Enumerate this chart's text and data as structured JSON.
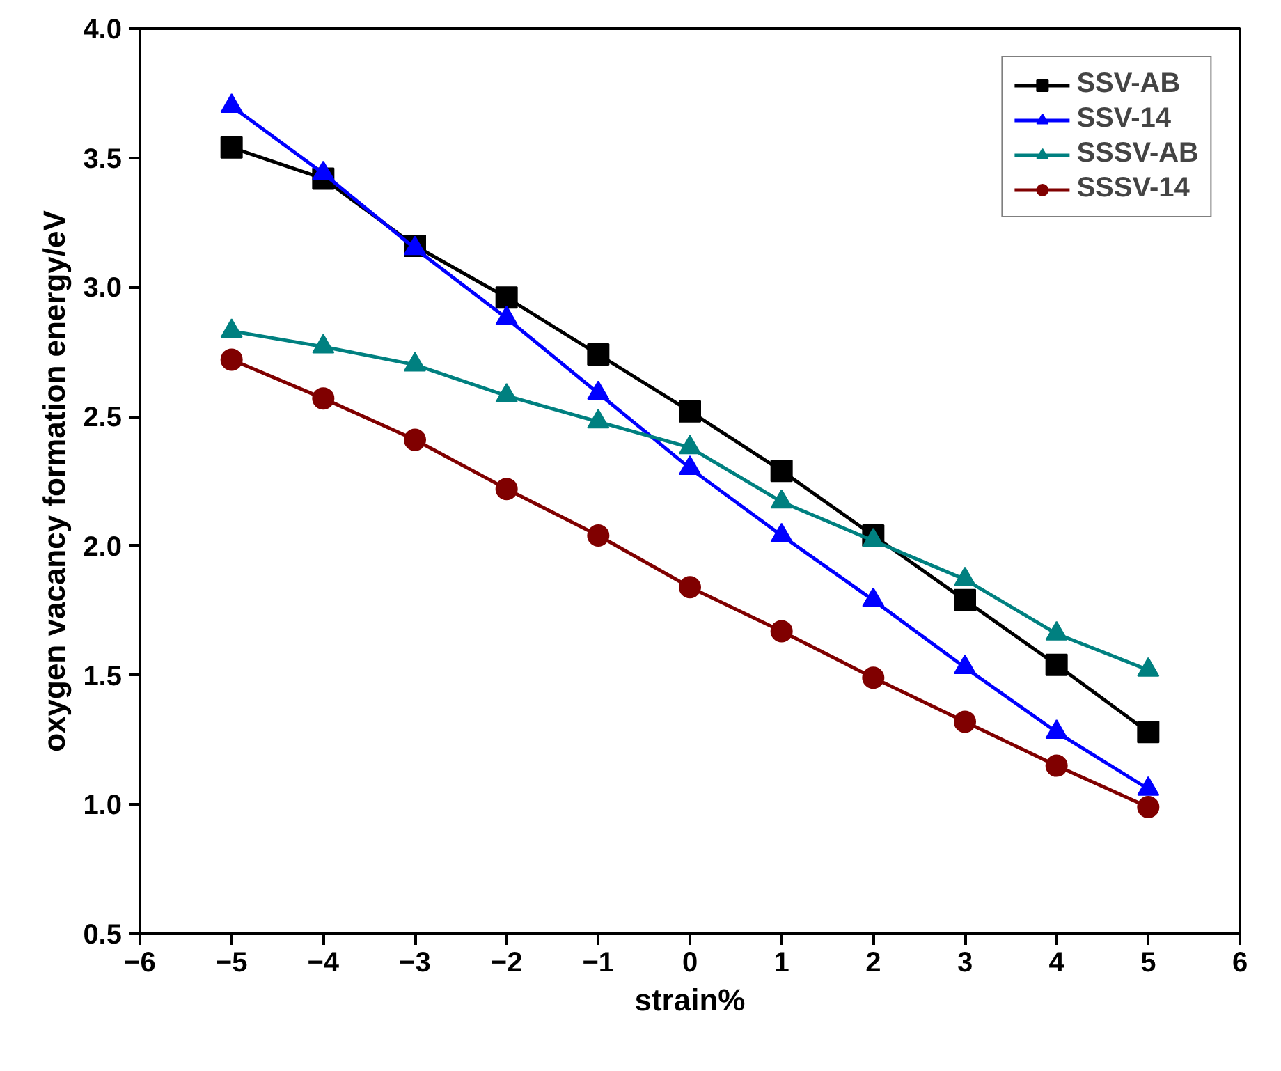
{
  "chart_data": {
    "type": "line",
    "xlabel": "strain%",
    "ylabel": "oxygen vacancy formation energy/eV",
    "x": [
      -5,
      -4,
      -3,
      -2,
      -1,
      0,
      1,
      2,
      3,
      4,
      5
    ],
    "series": [
      {
        "name": "SSV-AB",
        "color": "#000000",
        "marker": "square",
        "values": [
          3.54,
          3.42,
          3.16,
          2.96,
          2.74,
          2.52,
          2.29,
          2.04,
          1.79,
          1.54,
          1.28
        ]
      },
      {
        "name": "SSV-14",
        "color": "#0000ff",
        "marker": "triangle",
        "values": [
          3.7,
          3.44,
          3.15,
          2.88,
          2.59,
          2.3,
          2.04,
          1.79,
          1.53,
          1.28,
          1.06
        ]
      },
      {
        "name": "SSSV-AB",
        "color": "#008080",
        "marker": "triangle",
        "values": [
          2.83,
          2.77,
          2.7,
          2.58,
          2.48,
          2.38,
          2.17,
          2.02,
          1.87,
          1.66,
          1.52
        ]
      },
      {
        "name": "SSSV-14",
        "color": "#800000",
        "marker": "circle",
        "values": [
          2.72,
          2.57,
          2.41,
          2.22,
          2.04,
          1.84,
          1.67,
          1.49,
          1.32,
          1.15,
          0.99
        ]
      }
    ],
    "xlim": [
      -6,
      6
    ],
    "xticks": [
      -6,
      -5,
      -4,
      -3,
      -2,
      -1,
      0,
      1,
      2,
      3,
      4,
      5,
      6
    ],
    "ylim": [
      0.5,
      4.0
    ],
    "yticks": [
      {
        "value": 0.5,
        "label": "0.5"
      },
      {
        "value": 1.0,
        "label": "1.0"
      },
      {
        "value": 1.5,
        "label": "1.5"
      },
      {
        "value": 2.0,
        "label": "2.0"
      },
      {
        "value": 2.5,
        "label": "2.5"
      },
      {
        "value": 3.0,
        "label": "3.0"
      },
      {
        "value": 3.5,
        "label": "3.5"
      },
      {
        "value": 4.0,
        "label": "4.0"
      }
    ],
    "grid": false,
    "legend": "top right",
    "line_style": "solid"
  }
}
